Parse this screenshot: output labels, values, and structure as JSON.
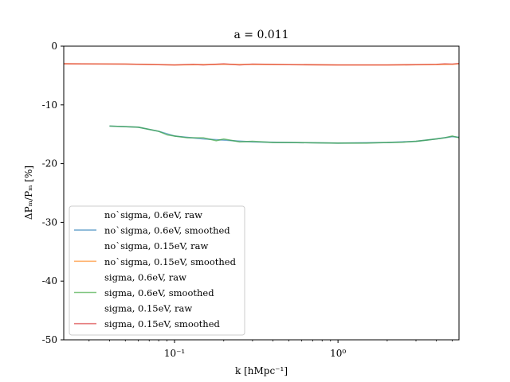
{
  "chart_data": {
    "type": "line",
    "title": "a = 0.011",
    "xlabel": "k [hMpc⁻¹]",
    "ylabel": "ΔPₘ/Pₘ [%]",
    "xscale": "log",
    "xlim": [
      0.021,
      5.5
    ],
    "ylim": [
      -50,
      0
    ],
    "xticks": [
      {
        "value": 0.1,
        "label": "10⁻¹"
      },
      {
        "value": 1,
        "label": "10⁰"
      }
    ],
    "yticks": [
      {
        "value": 0,
        "label": "0"
      },
      {
        "value": -10,
        "label": "-10"
      },
      {
        "value": -20,
        "label": "-20"
      },
      {
        "value": -30,
        "label": "-30"
      },
      {
        "value": -40,
        "label": "-40"
      },
      {
        "value": -50,
        "label": "-50"
      }
    ],
    "grid": false,
    "legend_position": "lower-left",
    "series": [
      {
        "name": "no`sigma, 0.6eV, raw",
        "color": "#1f77b4",
        "visible": false,
        "x": [
          0.04,
          0.06,
          0.08,
          0.1,
          0.15,
          0.2,
          0.3,
          0.5,
          1,
          2,
          3,
          4,
          5,
          5.5
        ],
        "y": [
          -13.6,
          -13.8,
          -14.5,
          -15.3,
          -15.8,
          -16.0,
          -16.3,
          -16.4,
          -16.5,
          -16.4,
          -16.2,
          -15.8,
          -15.4,
          -15.5
        ]
      },
      {
        "name": "no`sigma, 0.6eV, smoothed",
        "color": "#1f77b4",
        "visible": true,
        "x": [
          0.04,
          0.06,
          0.08,
          0.1,
          0.15,
          0.2,
          0.3,
          0.5,
          1,
          2,
          3,
          4,
          5,
          5.5
        ],
        "y": [
          -13.6,
          -13.8,
          -14.5,
          -15.3,
          -15.8,
          -16.0,
          -16.3,
          -16.4,
          -16.5,
          -16.4,
          -16.2,
          -15.8,
          -15.4,
          -15.5
        ]
      },
      {
        "name": "no`sigma, 0.15eV, raw",
        "color": "#ff7f0e",
        "visible": false,
        "x": [
          0.021,
          0.05,
          0.1,
          0.2,
          0.5,
          1,
          2,
          4,
          5,
          5.5
        ],
        "y": [
          -3.0,
          -3.05,
          -3.2,
          -3.1,
          -3.15,
          -3.2,
          -3.2,
          -3.15,
          -3.1,
          -3.0
        ]
      },
      {
        "name": "no`sigma, 0.15eV, smoothed",
        "color": "#ff7f0e",
        "visible": true,
        "x": [
          0.021,
          0.05,
          0.1,
          0.2,
          0.5,
          1,
          2,
          4,
          5,
          5.5
        ],
        "y": [
          -3.0,
          -3.05,
          -3.2,
          -3.1,
          -3.15,
          -3.2,
          -3.2,
          -3.15,
          -3.1,
          -3.0
        ]
      },
      {
        "name": "sigma, 0.6eV, raw",
        "color": "#2ca02c",
        "visible": false,
        "x": [
          0.04,
          0.06,
          0.08,
          0.09,
          0.1,
          0.12,
          0.15,
          0.18,
          0.2,
          0.25,
          0.3,
          0.4,
          0.5,
          0.7,
          1,
          1.5,
          2,
          2.5,
          3,
          3.5,
          4,
          4.5,
          5,
          5.5
        ],
        "y": [
          -13.6,
          -13.8,
          -14.5,
          -15.1,
          -15.3,
          -15.6,
          -15.6,
          -16.1,
          -15.8,
          -16.3,
          -16.2,
          -16.4,
          -16.4,
          -16.45,
          -16.5,
          -16.5,
          -16.4,
          -16.35,
          -16.2,
          -16.0,
          -15.8,
          -15.6,
          -15.3,
          -15.6
        ]
      },
      {
        "name": "sigma, 0.6eV, smoothed",
        "color": "#2ca02c",
        "visible": true,
        "x": [
          0.04,
          0.06,
          0.08,
          0.09,
          0.1,
          0.12,
          0.15,
          0.18,
          0.2,
          0.25,
          0.3,
          0.4,
          0.5,
          0.7,
          1,
          1.5,
          2,
          2.5,
          3,
          3.5,
          4,
          4.5,
          5,
          5.5
        ],
        "y": [
          -13.6,
          -13.8,
          -14.5,
          -15.1,
          -15.3,
          -15.6,
          -15.6,
          -16.1,
          -15.8,
          -16.3,
          -16.2,
          -16.4,
          -16.4,
          -16.45,
          -16.5,
          -16.5,
          -16.4,
          -16.35,
          -16.2,
          -16.0,
          -15.8,
          -15.6,
          -15.3,
          -15.6
        ]
      },
      {
        "name": "sigma, 0.15eV, raw",
        "color": "#d62728",
        "visible": false,
        "x": [
          0.021,
          0.05,
          0.08,
          0.1,
          0.13,
          0.15,
          0.2,
          0.25,
          0.3,
          0.5,
          1,
          2,
          3,
          4,
          4.5,
          5,
          5.5
        ],
        "y": [
          -3.0,
          -3.05,
          -3.15,
          -3.2,
          -3.1,
          -3.2,
          -3.0,
          -3.2,
          -3.05,
          -3.15,
          -3.2,
          -3.2,
          -3.15,
          -3.1,
          -3.0,
          -3.05,
          -2.95
        ]
      },
      {
        "name": "sigma, 0.15eV, smoothed",
        "color": "#d62728",
        "visible": true,
        "x": [
          0.021,
          0.05,
          0.08,
          0.1,
          0.13,
          0.15,
          0.2,
          0.25,
          0.3,
          0.5,
          1,
          2,
          3,
          4,
          4.5,
          5,
          5.5
        ],
        "y": [
          -3.0,
          -3.05,
          -3.15,
          -3.2,
          -3.1,
          -3.2,
          -3.0,
          -3.2,
          -3.05,
          -3.15,
          -3.2,
          -3.2,
          -3.15,
          -3.1,
          -3.0,
          -3.05,
          -2.95
        ]
      }
    ]
  }
}
